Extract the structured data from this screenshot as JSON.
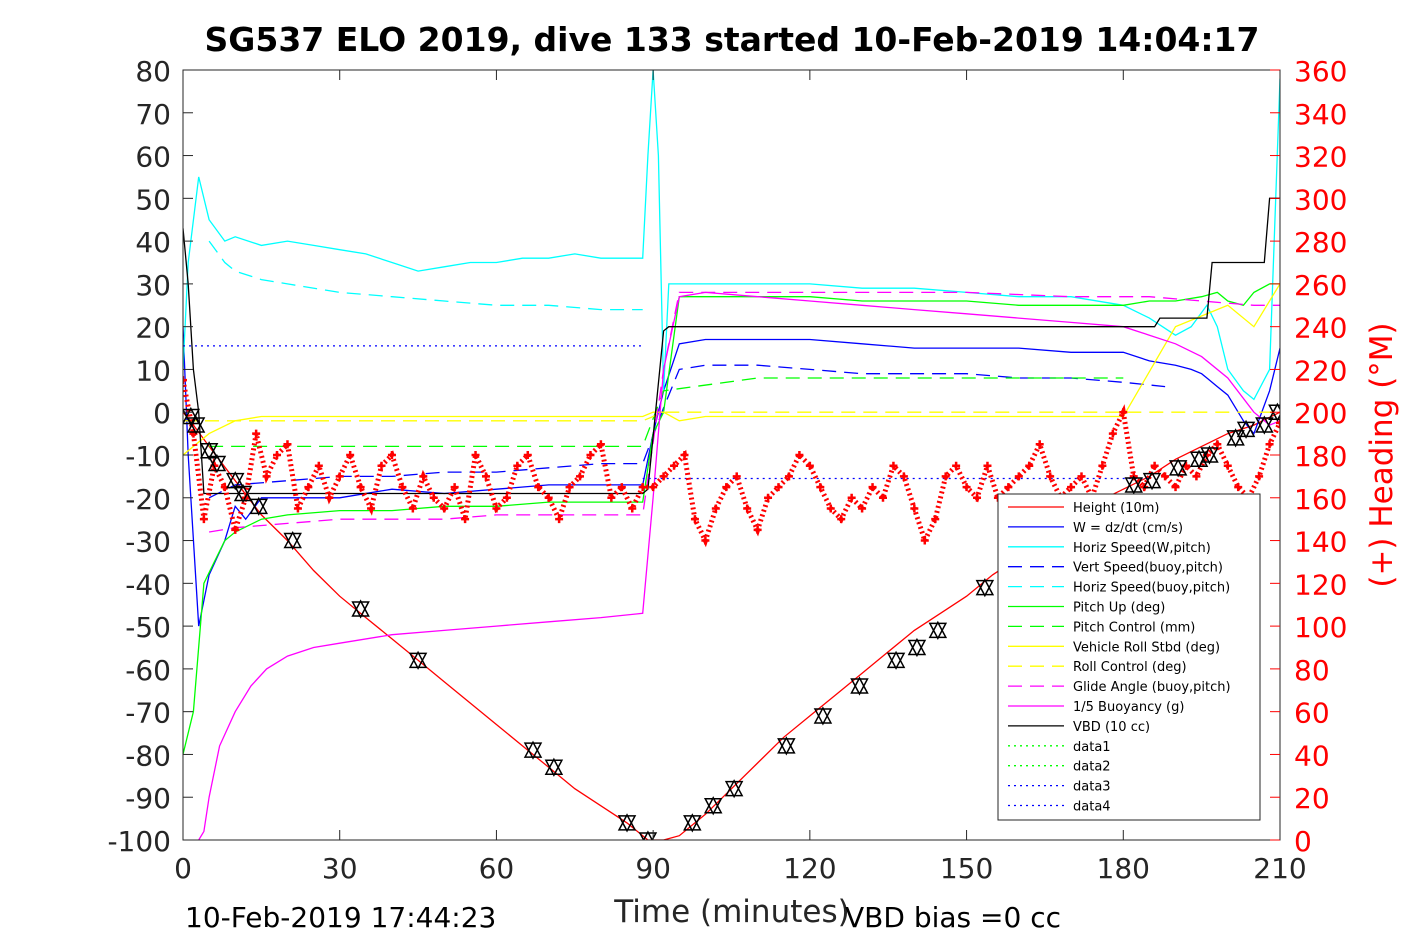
{
  "chart_data": {
    "type": "line",
    "title": "SG537 ELO 2019, dive 133 started 10-Feb-2019 14:04:17",
    "xlabel": "Time (minutes)",
    "ylabel_right": "(+) Heading (°M)",
    "footer_left": "10-Feb-2019 17:44:23",
    "footer_right": "VBD bias =0 cc",
    "xlim": [
      0,
      210
    ],
    "ylim": [
      -100,
      80
    ],
    "ylim_right": [
      0,
      360
    ],
    "x_ticks": [
      0,
      30,
      60,
      90,
      120,
      150,
      180,
      210
    ],
    "y_ticks": [
      -100,
      -90,
      -80,
      -70,
      -60,
      -50,
      -40,
      -30,
      -20,
      -10,
      0,
      10,
      20,
      30,
      40,
      50,
      60,
      70,
      80
    ],
    "y_ticks_right": [
      0,
      20,
      40,
      60,
      80,
      100,
      120,
      140,
      160,
      180,
      200,
      220,
      240,
      260,
      280,
      300,
      320,
      340,
      360
    ],
    "grid": false,
    "legend_position": "bottom-right",
    "colors": {
      "red": "#ff0000",
      "blue": "#0000ff",
      "cyan": "#00ffff",
      "green": "#00ff00",
      "yellow": "#ffff00",
      "magenta": "#ff00ff",
      "black": "#000000",
      "heading": "#ff0000"
    },
    "series": [
      {
        "name": "Height (10m)",
        "color": "#ff0000",
        "dash": "solid",
        "x": [
          0,
          2,
          5,
          10,
          15,
          20,
          25,
          30,
          35,
          40,
          45,
          50,
          55,
          60,
          65,
          70,
          75,
          80,
          85,
          89,
          92,
          95,
          100,
          105,
          110,
          115,
          120,
          125,
          130,
          135,
          140,
          145,
          150,
          155,
          160,
          165,
          170,
          175,
          180,
          185,
          190,
          195,
          200,
          205,
          210
        ],
        "y": [
          0,
          -3,
          -8,
          -16,
          -24,
          -30,
          -37,
          -43,
          -48,
          -53,
          -58,
          -63,
          -68,
          -73,
          -78,
          -83,
          -88,
          -92,
          -96,
          -100,
          -100,
          -99,
          -94,
          -88,
          -82,
          -76,
          -71,
          -66,
          -61,
          -56,
          -51,
          -47,
          -43,
          -38,
          -34,
          -29,
          -25,
          -21,
          -18,
          -15,
          -11,
          -8,
          -5,
          -3,
          0
        ]
      },
      {
        "name": "W = dz/dt (cm/s)",
        "color": "#0000ff",
        "dash": "solid",
        "x": [
          0,
          1,
          3,
          5,
          8,
          10,
          12,
          15,
          20,
          30,
          40,
          50,
          60,
          70,
          80,
          88,
          90,
          92,
          95,
          100,
          110,
          120,
          130,
          140,
          150,
          160,
          170,
          180,
          185,
          190,
          193,
          195,
          196,
          198,
          200,
          203,
          205,
          208,
          210
        ],
        "y": [
          20,
          -10,
          -50,
          -38,
          -30,
          -22,
          -25,
          -20,
          -20,
          -20,
          -18,
          -19,
          -18,
          -17,
          -17,
          -17,
          -5,
          5,
          16,
          17,
          17,
          17,
          16,
          15,
          15,
          15,
          14,
          14,
          12,
          11,
          10,
          9,
          8,
          6,
          4,
          -2,
          -5,
          5,
          15
        ]
      },
      {
        "name": "Horiz Speed(W,pitch)",
        "color": "#00ffff",
        "dash": "solid",
        "x": [
          0,
          1,
          3,
          5,
          8,
          10,
          15,
          20,
          25,
          30,
          35,
          40,
          45,
          50,
          55,
          60,
          65,
          70,
          75,
          80,
          85,
          88,
          89,
          90,
          91,
          92,
          93,
          95,
          100,
          110,
          120,
          130,
          140,
          150,
          160,
          170,
          180,
          185,
          190,
          193,
          196,
          198,
          200,
          203,
          205,
          208,
          210
        ],
        "y": [
          10,
          35,
          55,
          45,
          40,
          41,
          39,
          40,
          39,
          38,
          37,
          35,
          33,
          34,
          35,
          35,
          36,
          36,
          37,
          36,
          36,
          36,
          60,
          80,
          60,
          5,
          30,
          30,
          30,
          30,
          30,
          29,
          29,
          28,
          27,
          27,
          25,
          22,
          18,
          20,
          25,
          20,
          10,
          5,
          3,
          10,
          78
        ]
      },
      {
        "name": "Vert Speed(buoy,pitch)",
        "color": "#0000ff",
        "dash": "dashed",
        "x": [
          5,
          10,
          20,
          30,
          40,
          50,
          60,
          70,
          80,
          88,
          92,
          95,
          100,
          110,
          120,
          130,
          140,
          150,
          160,
          170,
          180,
          188
        ],
        "y": [
          -20,
          -17,
          -16,
          -15,
          -15,
          -14,
          -14,
          -13,
          -12,
          -12,
          1,
          10,
          11,
          11,
          10,
          9,
          9,
          9,
          8,
          8,
          7,
          6
        ]
      },
      {
        "name": "Horiz Speed(buoy,pitch)",
        "color": "#00ffff",
        "dash": "dashed",
        "x": [
          5,
          8,
          10,
          15,
          20,
          30,
          40,
          50,
          60,
          70,
          80,
          88
        ],
        "y": [
          40,
          35,
          33,
          31,
          30,
          28,
          27,
          26,
          25,
          25,
          24,
          24
        ]
      },
      {
        "name": "Pitch Up (deg)",
        "color": "#00ff00",
        "dash": "solid",
        "x": [
          0,
          2,
          4,
          6,
          8,
          10,
          15,
          20,
          30,
          40,
          50,
          60,
          70,
          80,
          88,
          90,
          92,
          95,
          100,
          110,
          120,
          130,
          140,
          150,
          160,
          170,
          180,
          185,
          190,
          195,
          198,
          200,
          203,
          205,
          208,
          210
        ],
        "y": [
          -80,
          -70,
          -40,
          -35,
          -30,
          -28,
          -25,
          -24,
          -23,
          -23,
          -22,
          -22,
          -21,
          -21,
          -21,
          -5,
          0,
          27,
          27,
          27,
          27,
          26,
          26,
          26,
          25,
          25,
          25,
          26,
          26,
          27,
          28,
          26,
          25,
          28,
          30,
          30
        ]
      },
      {
        "name": "Pitch Control (mm)",
        "color": "#00ff00",
        "dash": "dashed",
        "x": [
          5,
          10,
          88,
          92,
          110,
          180
        ],
        "y": [
          -8,
          -8,
          -8,
          5,
          8,
          8
        ]
      },
      {
        "name": "Vehicle Roll Stbd (deg)",
        "color": "#ffff00",
        "dash": "solid",
        "x": [
          0,
          5,
          10,
          15,
          20,
          30,
          40,
          50,
          60,
          70,
          80,
          88,
          90,
          92,
          95,
          100,
          110,
          120,
          130,
          140,
          150,
          160,
          170,
          180,
          190,
          200,
          205,
          210
        ],
        "y": [
          -10,
          -5,
          -2,
          -1,
          -1,
          -1,
          -1,
          -1,
          -1,
          -1,
          -1,
          -1,
          0,
          0,
          -2,
          -1,
          -1,
          -1,
          -1,
          -1,
          -1,
          -1,
          -1,
          -1,
          20,
          25,
          20,
          30
        ]
      },
      {
        "name": "Roll Control (deg)",
        "color": "#ffff00",
        "dash": "dashed",
        "x": [
          0,
          5,
          10,
          20,
          40,
          60,
          80,
          88,
          92,
          100,
          120,
          140,
          160,
          180,
          200,
          210
        ],
        "y": [
          -2,
          -2,
          -2,
          -2,
          -2,
          -2,
          -2,
          -2,
          0,
          0,
          0,
          0,
          0,
          0,
          0,
          0
        ]
      },
      {
        "name": "Glide Angle (buoy,pitch)",
        "color": "#ff00ff",
        "dash": "dashed",
        "x": [
          5,
          10,
          20,
          30,
          40,
          50,
          60,
          70,
          80,
          88,
          92,
          95,
          110,
          130,
          150,
          170,
          185,
          195,
          205,
          210
        ],
        "y": [
          -28,
          -27,
          -26,
          -25,
          -25,
          -25,
          -24,
          -24,
          -24,
          -24,
          10,
          28,
          28,
          28,
          28,
          27,
          27,
          26,
          25,
          25
        ]
      },
      {
        "name": "1/5 Buoyancy (g)",
        "color": "#ff00ff",
        "dash": "solid",
        "x": [
          3,
          4,
          5,
          7,
          10,
          13,
          16,
          20,
          25,
          30,
          40,
          50,
          60,
          70,
          80,
          88,
          90,
          92,
          95,
          100,
          110,
          120,
          130,
          140,
          150,
          160,
          170,
          180,
          185,
          190,
          195,
          200,
          205,
          208,
          210
        ],
        "y": [
          -100,
          -98,
          -90,
          -78,
          -70,
          -64,
          -60,
          -57,
          -55,
          -54,
          -52,
          -51,
          -50,
          -49,
          -48,
          -47,
          -20,
          10,
          27,
          28,
          27,
          26,
          25,
          24,
          23,
          22,
          21,
          20,
          18,
          16,
          13,
          8,
          0,
          -3,
          -2
        ]
      },
      {
        "name": "VBD (10 cc)",
        "color": "#000000",
        "dash": "solid",
        "x": [
          0,
          1,
          2,
          3,
          4,
          88,
          89,
          92,
          93,
          95,
          186,
          187,
          196,
          197,
          207,
          208,
          210
        ],
        "y": [
          43,
          30,
          10,
          0,
          -19,
          -19,
          -18,
          19,
          20,
          20,
          20,
          22,
          22,
          35,
          35,
          50,
          50
        ]
      },
      {
        "name": "data1",
        "color": "#00ff00",
        "dash": "dotted",
        "x": [],
        "y": []
      },
      {
        "name": "data2",
        "color": "#00ff00",
        "dash": "dotted",
        "x": [],
        "y": []
      },
      {
        "name": "data3",
        "color": "#0000ff",
        "dash": "dotted",
        "x": [
          0,
          88
        ],
        "y": [
          15.5,
          15.5
        ]
      },
      {
        "name": "data4",
        "color": "#0000ff",
        "dash": "dotted",
        "x": [
          88,
          185
        ],
        "y": [
          -15.5,
          -15.5
        ]
      }
    ],
    "vbd_markers": [
      {
        "x": 1.5,
        "y": -1
      },
      {
        "x": 2.5,
        "y": -3
      },
      {
        "x": 5,
        "y": -9
      },
      {
        "x": 6.5,
        "y": -12
      },
      {
        "x": 10,
        "y": -16
      },
      {
        "x": 11.5,
        "y": -19
      },
      {
        "x": 14.5,
        "y": -22
      },
      {
        "x": 21,
        "y": -30
      },
      {
        "x": 34,
        "y": -46
      },
      {
        "x": 45,
        "y": -58
      },
      {
        "x": 67,
        "y": -79
      },
      {
        "x": 71,
        "y": -83
      },
      {
        "x": 85,
        "y": -96
      },
      {
        "x": 89,
        "y": -100
      },
      {
        "x": 97.5,
        "y": -96
      },
      {
        "x": 101.5,
        "y": -92
      },
      {
        "x": 105.5,
        "y": -88
      },
      {
        "x": 115.5,
        "y": -78
      },
      {
        "x": 122.5,
        "y": -71
      },
      {
        "x": 129.5,
        "y": -64
      },
      {
        "x": 136.5,
        "y": -58
      },
      {
        "x": 140.5,
        "y": -55
      },
      {
        "x": 144.5,
        "y": -51
      },
      {
        "x": 153.5,
        "y": -41
      },
      {
        "x": 182,
        "y": -17
      },
      {
        "x": 185.5,
        "y": -16
      },
      {
        "x": 190.5,
        "y": -13
      },
      {
        "x": 194.5,
        "y": -11
      },
      {
        "x": 196.5,
        "y": -10
      },
      {
        "x": 201.5,
        "y": -6
      },
      {
        "x": 203.5,
        "y": -4
      },
      {
        "x": 207,
        "y": -3
      },
      {
        "x": 209.5,
        "y": 0
      }
    ],
    "heading_series": {
      "axis": "right",
      "color": "#ff0000",
      "x": [
        0,
        2,
        4,
        6,
        8,
        10,
        12,
        14,
        16,
        18,
        20,
        22,
        24,
        26,
        28,
        30,
        32,
        34,
        36,
        38,
        40,
        42,
        44,
        46,
        48,
        50,
        52,
        54,
        56,
        58,
        60,
        62,
        64,
        66,
        68,
        70,
        72,
        74,
        76,
        78,
        80,
        82,
        84,
        86,
        88,
        90,
        92,
        94,
        96,
        98,
        100,
        102,
        104,
        106,
        108,
        110,
        112,
        114,
        116,
        118,
        120,
        122,
        124,
        126,
        128,
        130,
        132,
        134,
        136,
        138,
        140,
        142,
        144,
        146,
        148,
        150,
        152,
        154,
        156,
        158,
        160,
        162,
        164,
        166,
        168,
        170,
        172,
        174,
        176,
        178,
        180,
        182,
        184,
        186,
        188,
        190,
        192,
        194,
        196,
        198,
        200,
        202,
        204,
        206,
        208,
        210
      ],
      "y": [
        215,
        190,
        150,
        175,
        165,
        145,
        160,
        190,
        170,
        180,
        185,
        155,
        165,
        175,
        160,
        170,
        180,
        165,
        155,
        175,
        180,
        165,
        155,
        170,
        160,
        155,
        165,
        150,
        180,
        170,
        155,
        160,
        175,
        180,
        165,
        160,
        150,
        165,
        170,
        180,
        185,
        160,
        165,
        155,
        165,
        165,
        170,
        175,
        180,
        150,
        140,
        155,
        165,
        170,
        155,
        145,
        160,
        165,
        170,
        180,
        175,
        165,
        155,
        150,
        160,
        155,
        165,
        160,
        175,
        170,
        155,
        140,
        150,
        170,
        175,
        165,
        160,
        175,
        160,
        165,
        170,
        175,
        185,
        170,
        160,
        165,
        170,
        160,
        175,
        190,
        200,
        170,
        165,
        175,
        170,
        165,
        175,
        170,
        180,
        185,
        175,
        165,
        160,
        170,
        185,
        195
      ]
    }
  }
}
